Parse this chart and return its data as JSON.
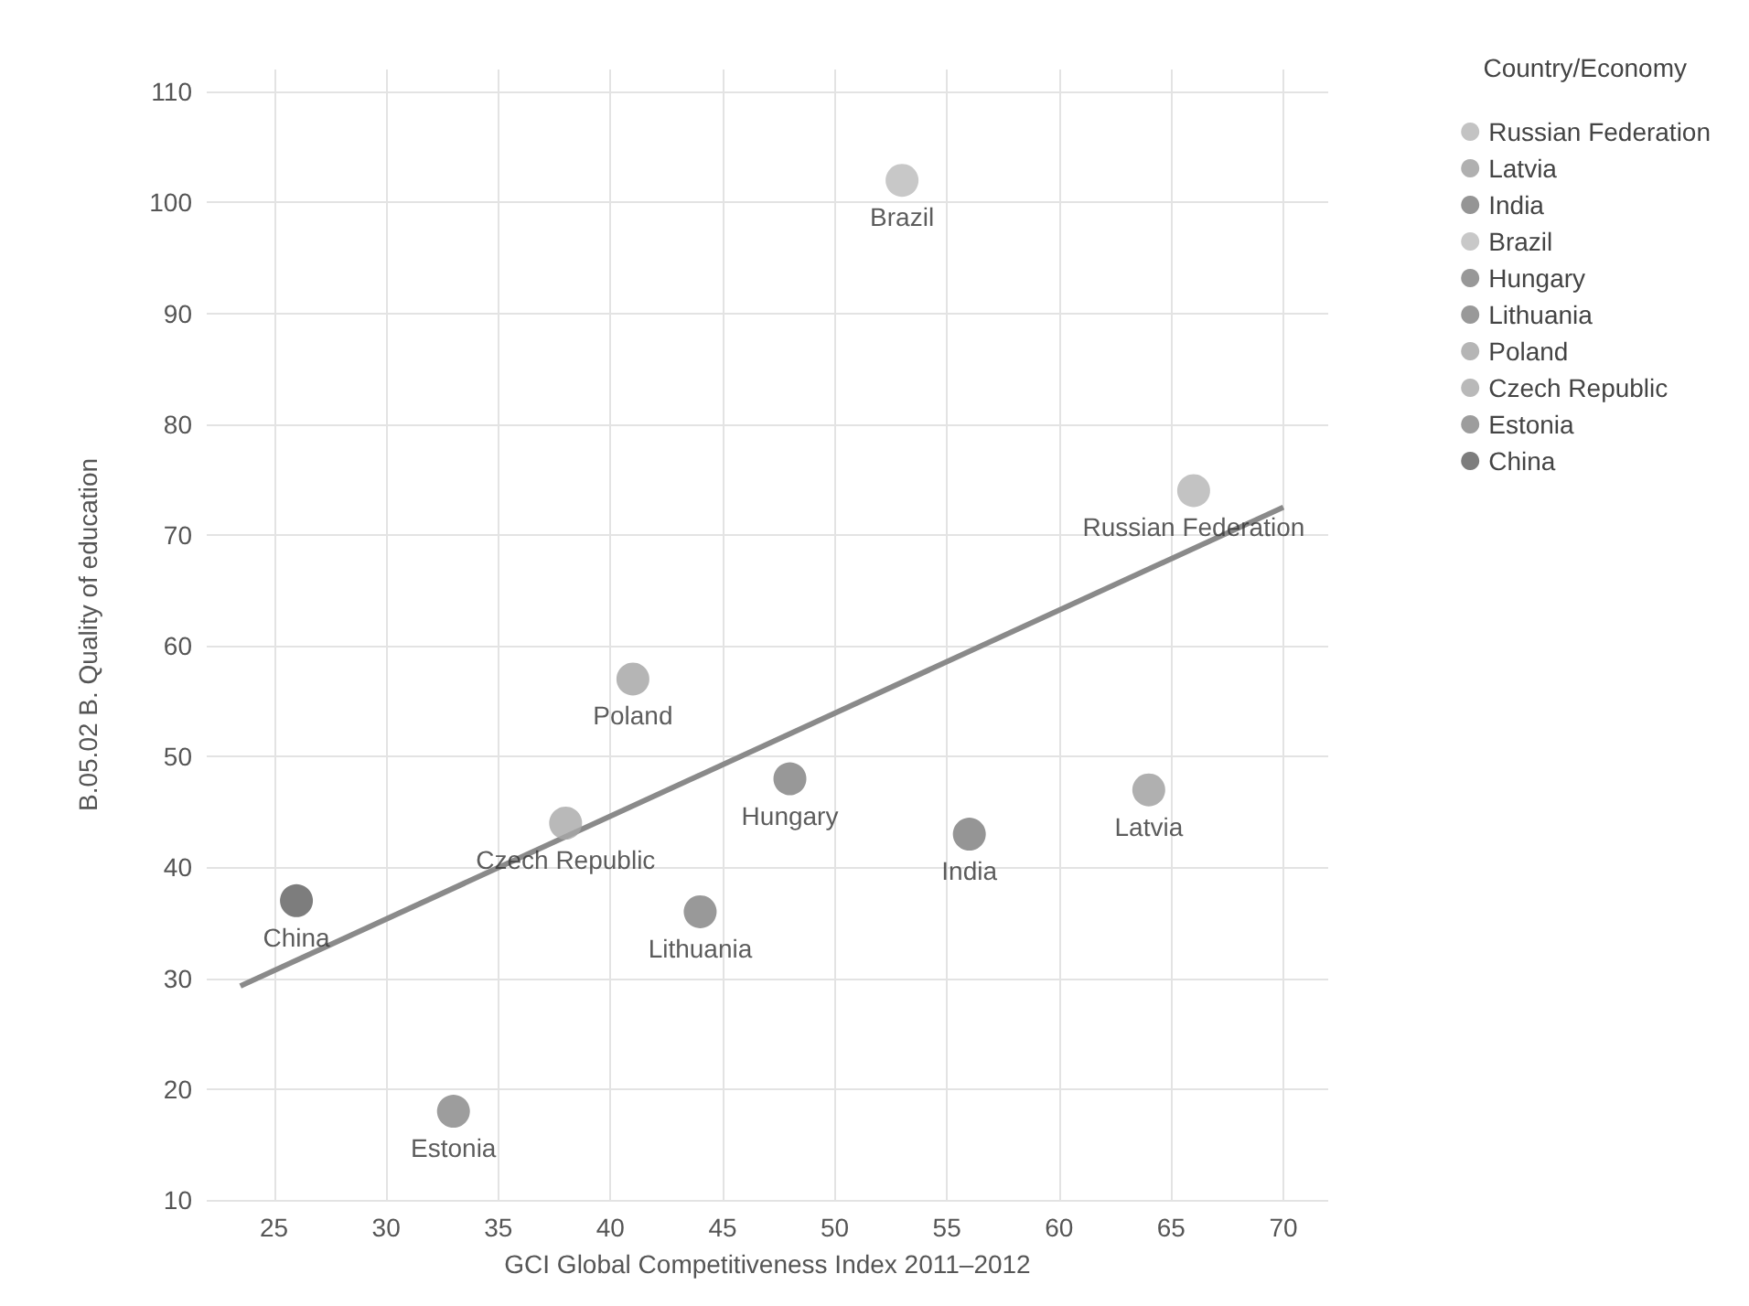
{
  "chart_data": {
    "type": "scatter",
    "xlabel": "GCI Global Competitiveness Index 2011–2012",
    "ylabel": "B.05.02 B. Quality of education",
    "legend_title": "Country/Economy",
    "xlim": [
      22,
      72
    ],
    "xticks": [
      25,
      30,
      35,
      40,
      45,
      50,
      55,
      60,
      65,
      70
    ],
    "ylim": [
      10,
      112
    ],
    "yticks": [
      10,
      20,
      30,
      40,
      50,
      60,
      70,
      80,
      90,
      100,
      110
    ],
    "grid": true,
    "legend": "top right",
    "marker": "circle",
    "series": [
      {
        "name": "Russian Federation",
        "color": "#b4b4b4",
        "x": [
          66
        ],
        "values": [
          74
        ]
      },
      {
        "name": "Latvia",
        "color": "#9c9c9c",
        "x": [
          64
        ],
        "values": [
          47
        ]
      },
      {
        "name": "India",
        "color": "#7a7a7a",
        "x": [
          56
        ],
        "values": [
          43
        ]
      },
      {
        "name": "Brazil",
        "color": "#bababa",
        "x": [
          53
        ],
        "values": [
          102
        ]
      },
      {
        "name": "Hungary",
        "color": "#7e7e7e",
        "x": [
          48
        ],
        "values": [
          48
        ]
      },
      {
        "name": "Lithuania",
        "color": "#808080",
        "x": [
          44
        ],
        "values": [
          36
        ]
      },
      {
        "name": "Poland",
        "color": "#a2a2a2",
        "x": [
          41
        ],
        "values": [
          57
        ]
      },
      {
        "name": "Czech Republic",
        "color": "#a8a8a8",
        "x": [
          38
        ],
        "values": [
          44
        ]
      },
      {
        "name": "Estonia",
        "color": "#858585",
        "x": [
          33
        ],
        "values": [
          18
        ]
      },
      {
        "name": "China",
        "color": "#5c5c5c",
        "x": [
          26
        ],
        "values": [
          37
        ]
      },
      {
        "type": "line",
        "marker": "none",
        "color": "#8a8a8a",
        "x": [
          23.5,
          70
        ],
        "values": [
          29.3,
          72.5
        ]
      }
    ]
  }
}
